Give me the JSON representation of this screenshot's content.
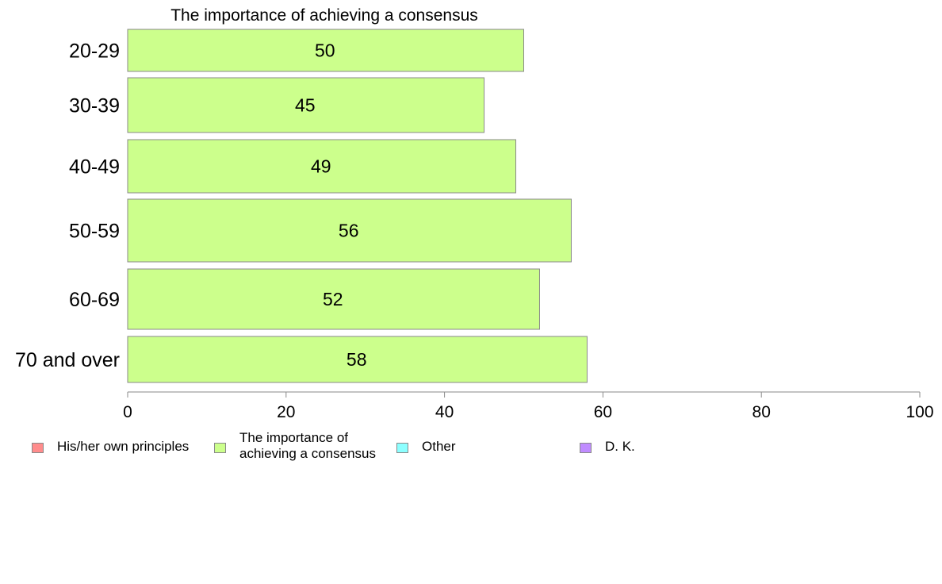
{
  "chart_data": {
    "type": "bar",
    "orientation": "horizontal",
    "title": "The importance of achieving a consensus",
    "categories": [
      "20-29",
      "30-39",
      "40-49",
      "50-59",
      "60-69",
      "70 and over"
    ],
    "series": [
      {
        "name": "The importance of achieving a consensus",
        "values": [
          50,
          45,
          49,
          56,
          52,
          58
        ],
        "color": "#ccff8c"
      }
    ],
    "data_labels": [
      "50",
      "45",
      "49",
      "56",
      "52",
      "58"
    ],
    "xlim": [
      0,
      100
    ],
    "xticks": [
      0,
      20,
      40,
      60,
      80,
      100
    ],
    "xtick_labels": [
      "0",
      "20",
      "40",
      "60",
      "80",
      "100"
    ],
    "xlabel": "",
    "ylabel": "",
    "grid": false,
    "legend_position": "bottom",
    "legend": [
      {
        "label": "His/her own principles",
        "color": "#ff8c8c"
      },
      {
        "label": "The importance of\nachieving a consensus",
        "color": "#ccff8c"
      },
      {
        "label": "Other",
        "color": "#8cffff"
      },
      {
        "label": "D. K.",
        "color": "#c08cff"
      }
    ]
  }
}
